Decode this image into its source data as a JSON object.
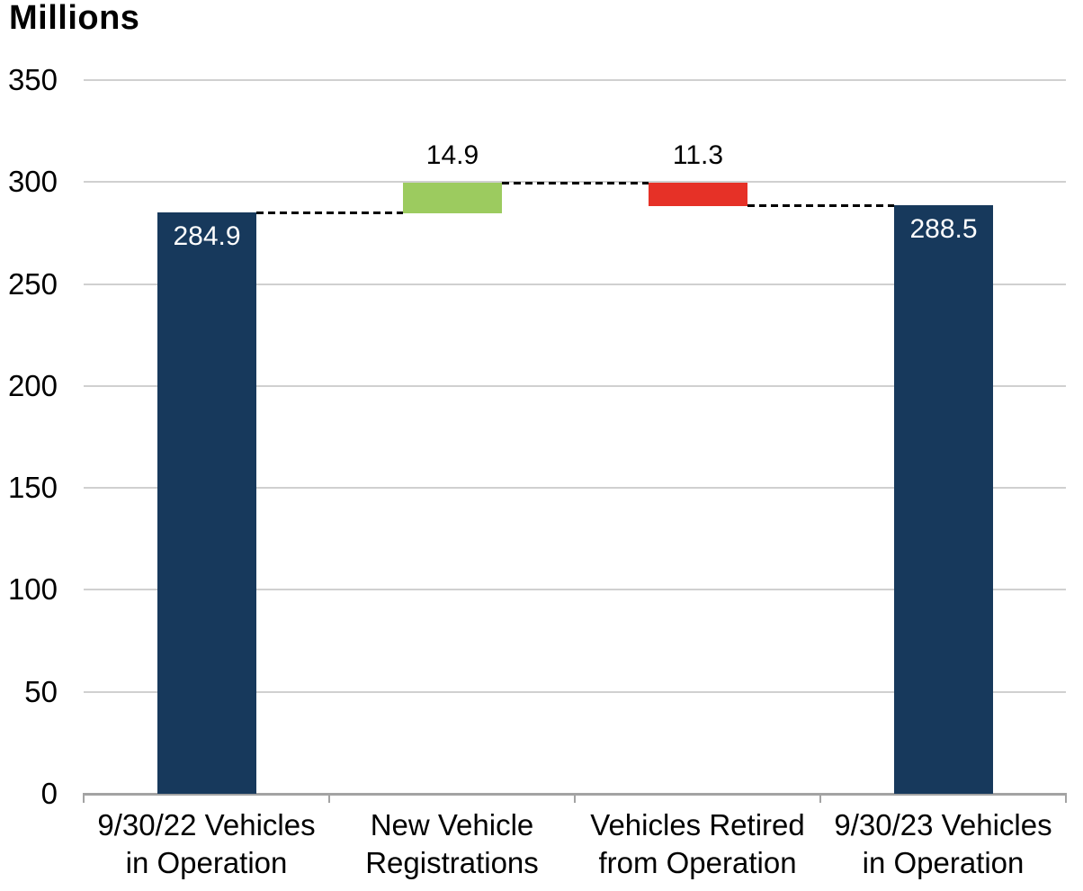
{
  "chart_data": {
    "type": "bar",
    "subtype": "waterfall",
    "title": "Millions",
    "y_axis": {
      "min": 0,
      "max": 350,
      "step": 50,
      "tick_labels": [
        "0",
        "50",
        "100",
        "150",
        "200",
        "250",
        "300",
        "350"
      ]
    },
    "categories": [
      {
        "x_label_lines": [
          "9/30/22 Vehicles",
          "in Operation"
        ],
        "value": 284.9,
        "value_label": "284.9",
        "role": "total",
        "span": [
          0,
          284.9
        ],
        "color": "#17395C",
        "value_label_style": "inside-white"
      },
      {
        "x_label_lines": [
          "New Vehicle",
          "Registrations"
        ],
        "value": 14.9,
        "value_label": "14.9",
        "role": "increase",
        "span": [
          284.9,
          299.8
        ],
        "color": "#9CCB5F",
        "value_label_style": "above-black"
      },
      {
        "x_label_lines": [
          "Vehicles Retired",
          "from Operation"
        ],
        "value": 11.3,
        "value_label": "11.3",
        "role": "decrease",
        "span": [
          288.5,
          299.8
        ],
        "color": "#E63127",
        "value_label_style": "above-black"
      },
      {
        "x_label_lines": [
          "9/30/23 Vehicles",
          "in Operation"
        ],
        "value": 288.5,
        "value_label": "288.5",
        "role": "total",
        "span": [
          0,
          288.5
        ],
        "color": "#17395C",
        "value_label_style": "inside-white"
      }
    ],
    "connectors": [
      {
        "level": 284.9,
        "between": [
          0,
          1
        ]
      },
      {
        "level": 299.8,
        "between": [
          1,
          2
        ]
      },
      {
        "level": 288.5,
        "between": [
          2,
          3
        ]
      }
    ],
    "colors": {
      "total_bar": "#17395C",
      "increase_bar": "#9CCB5F",
      "decrease_bar": "#E63127",
      "gridline": "#D0D0D0",
      "axis_line": "#A3A3A3",
      "connector": "#000000",
      "value_label_inside": "#FFFFFF",
      "text": "#000000"
    },
    "layout_hints": {
      "grid": "horizontal",
      "legend": "none"
    }
  }
}
